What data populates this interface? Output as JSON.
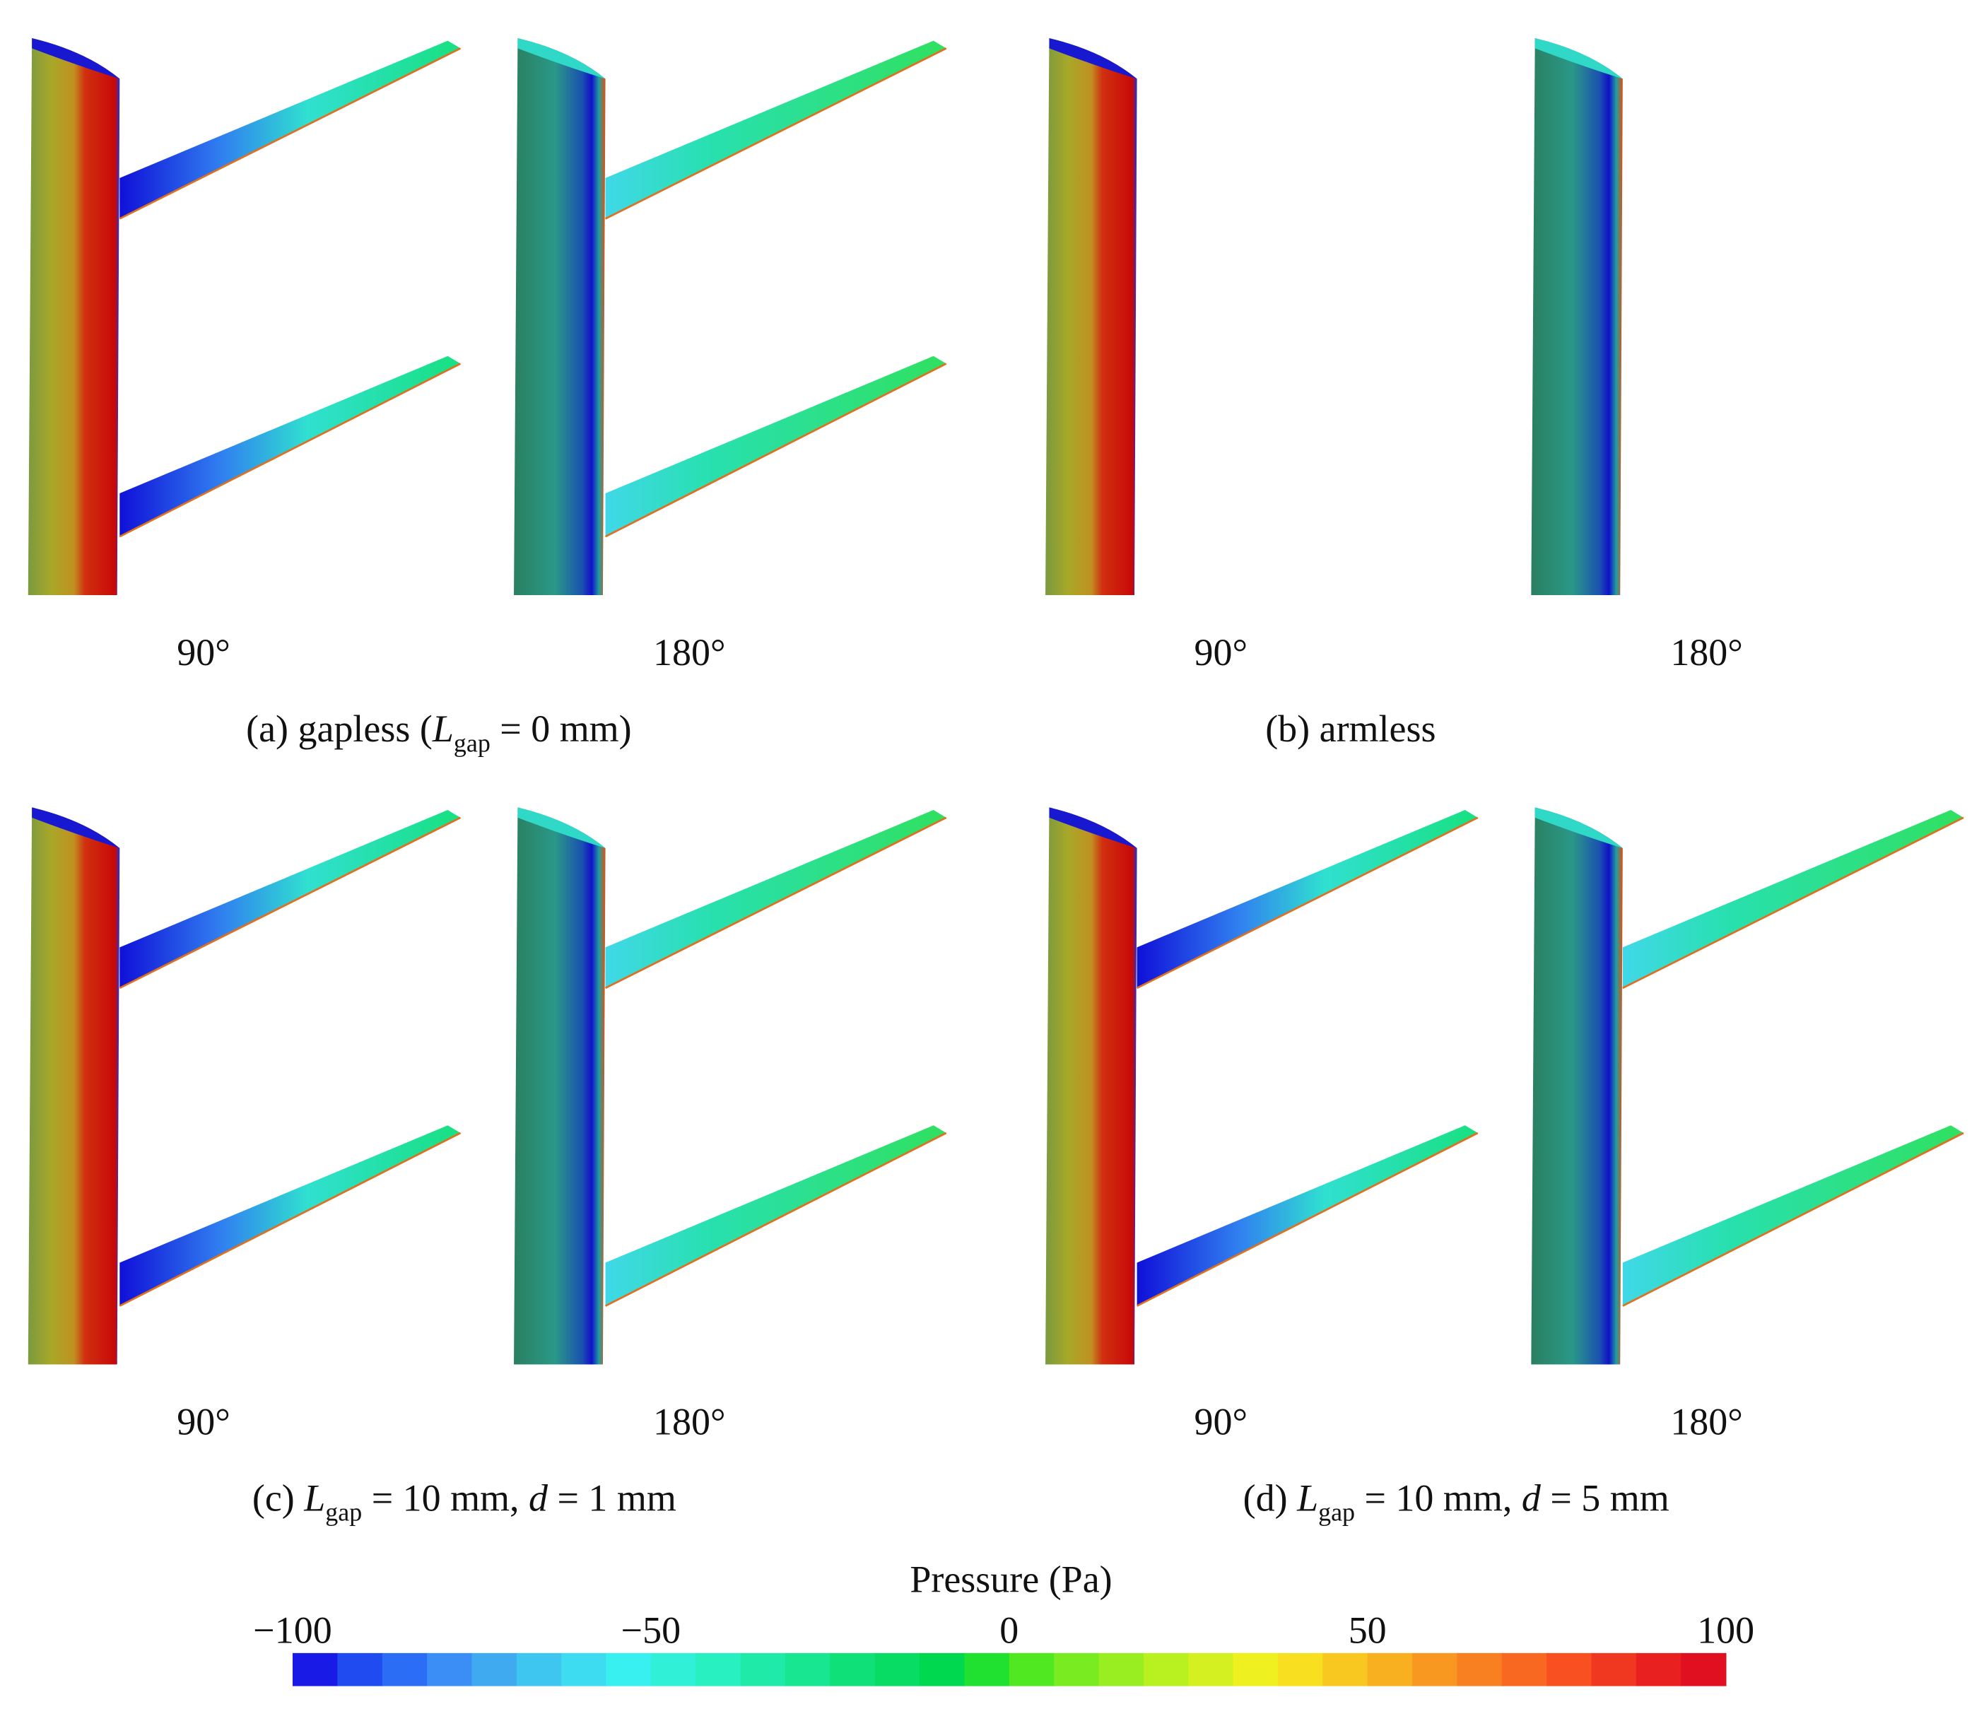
{
  "panels": [
    {
      "views": [
        "90°",
        "180°"
      ],
      "caption": [
        {
          "text": "(a) gapless (",
          "style": "normal"
        },
        {
          "text": "L",
          "style": "italic"
        },
        {
          "text": "gap",
          "style": "sub"
        },
        {
          "text": " = 0 mm)",
          "style": "normal"
        }
      ]
    },
    {
      "views": [
        "90°",
        "180°"
      ],
      "caption": [
        {
          "text": "(b) armless",
          "style": "normal"
        }
      ]
    },
    {
      "views": [
        "90°",
        "180°"
      ],
      "caption": [
        {
          "text": "(c) ",
          "style": "normal"
        },
        {
          "text": "L",
          "style": "italic"
        },
        {
          "text": "gap",
          "style": "sub"
        },
        {
          "text": " = 10 mm, ",
          "style": "normal"
        },
        {
          "text": "d",
          "style": "italic"
        },
        {
          "text": " = 1 mm",
          "style": "normal"
        }
      ]
    },
    {
      "views": [
        "90°",
        "180°"
      ],
      "caption": [
        {
          "text": "(d) ",
          "style": "normal"
        },
        {
          "text": "L",
          "style": "italic"
        },
        {
          "text": "gap",
          "style": "sub"
        },
        {
          "text": " = 10 mm, ",
          "style": "normal"
        },
        {
          "text": "d",
          "style": "italic"
        },
        {
          "text": " = 5 mm",
          "style": "normal"
        }
      ]
    }
  ],
  "colorbar": {
    "title": "Pressure (Pa)",
    "lim": [
      -100,
      100
    ],
    "ticks": [
      {
        "value": -100,
        "label": "−100"
      },
      {
        "value": -50,
        "label": "−50"
      },
      0,
      50,
      100
    ],
    "colors": [
      "#1a1ae6",
      "#1f4bf0",
      "#2b6ef5",
      "#3a8ef5",
      "#3faaf0",
      "#3ec5f0",
      "#3ddcf0",
      "#38f0f0",
      "#30f0d8",
      "#28f0c0",
      "#20eaa8",
      "#18e690",
      "#10e078",
      "#08dc64",
      "#00d850",
      "#20e030",
      "#50e820",
      "#78ec20",
      "#98ee20",
      "#b8f020",
      "#d4f020",
      "#eef020",
      "#f8e020",
      "#f8c820",
      "#f8b020",
      "#f89820",
      "#f88020",
      "#f86820",
      "#f85020",
      "#f03820",
      "#e82020",
      "#e01020"
    ]
  }
}
